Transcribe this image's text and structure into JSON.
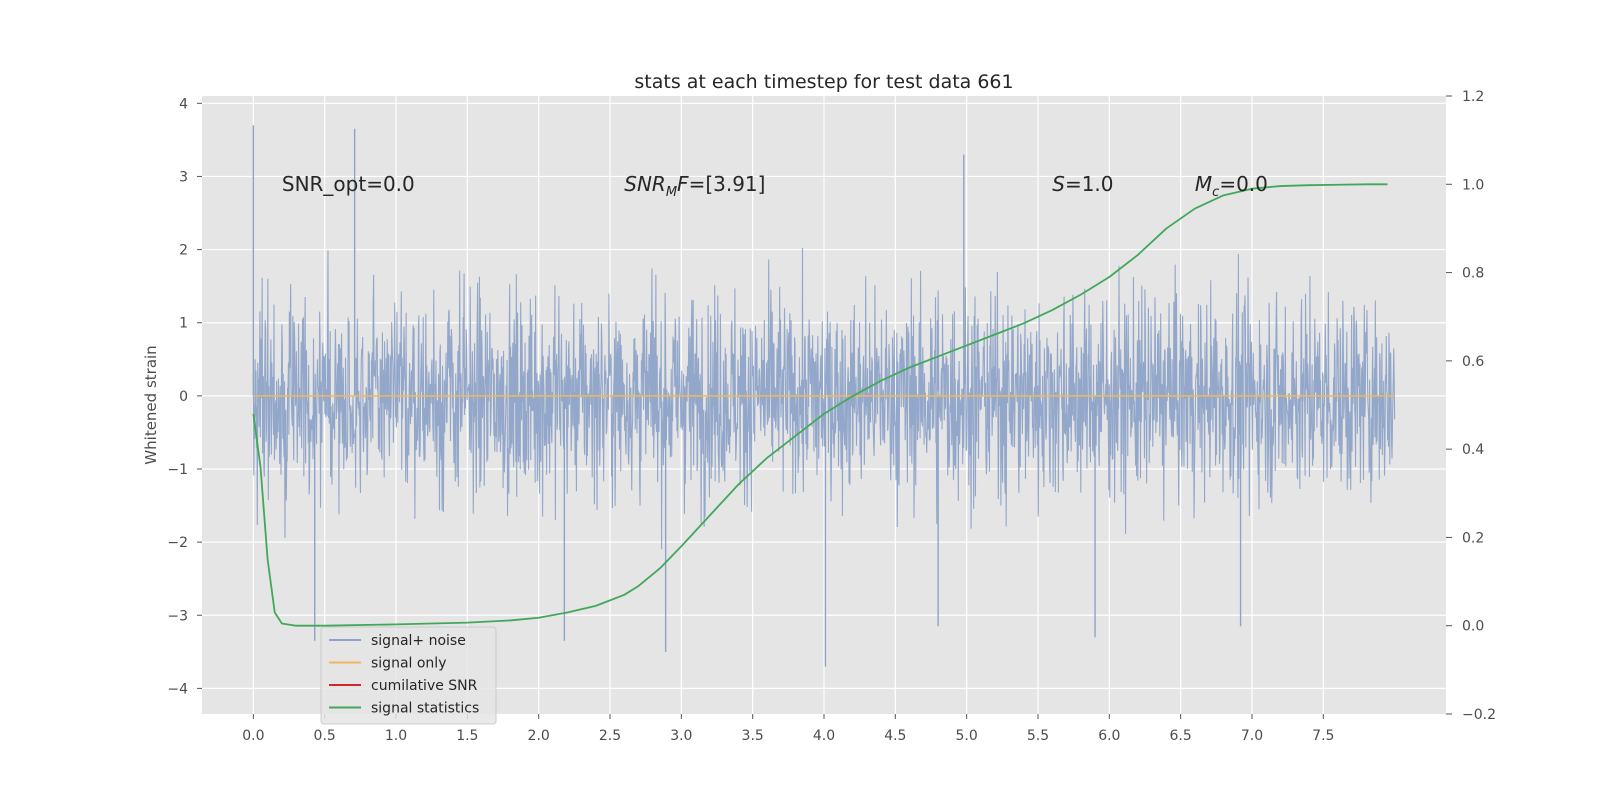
{
  "chart_data": {
    "type": "line",
    "title": "stats at each timestep for test data 661",
    "ylabel": "Whitened strain",
    "xlim": [
      -0.36,
      8.36
    ],
    "ylim": [
      -4.35,
      4.1
    ],
    "y2lim": [
      -0.2,
      1.2
    ],
    "x_ticks": [
      0.0,
      0.5,
      1.0,
      1.5,
      2.0,
      2.5,
      3.0,
      3.5,
      4.0,
      4.5,
      5.0,
      5.5,
      6.0,
      6.5,
      7.0,
      7.5
    ],
    "x_tick_labels": [
      "0.0",
      "0.5",
      "1.0",
      "1.5",
      "2.0",
      "2.5",
      "3.0",
      "3.5",
      "4.0",
      "4.5",
      "5.0",
      "5.5",
      "6.0",
      "6.5",
      "7.0",
      "7.5"
    ],
    "y_ticks": [
      -4,
      -3,
      -2,
      -1,
      0,
      1,
      2,
      3,
      4
    ],
    "y_tick_labels": [
      "−4",
      "−3",
      "−2",
      "−1",
      "0",
      "1",
      "2",
      "3",
      "4"
    ],
    "y2_ticks": [
      -0.2,
      0.0,
      0.2,
      0.4,
      0.6,
      0.8,
      1.0,
      1.2
    ],
    "y2_tick_labels": [
      "−0.2",
      "0.0",
      "0.2",
      "0.4",
      "0.6",
      "0.8",
      "1.0",
      "1.2"
    ],
    "grid": true,
    "legend_placement": "lower-left",
    "annotations": [
      {
        "text": "SNR_opt=0.0",
        "x": 0.2,
        "y": 2.9
      },
      {
        "text": "SNR_MF=[3.91]",
        "main": "SNR",
        "sub": "M",
        "tail": "F=[3.91]",
        "italic": true,
        "x": 2.6,
        "y": 2.9
      },
      {
        "text": "S=1.0",
        "main": "S",
        "tail": "=1.0",
        "italic": true,
        "x": 5.6,
        "y": 2.9
      },
      {
        "text": "M_c=0.0",
        "main": "M",
        "sub": "c",
        "tail": "=0.0",
        "italic": true,
        "x": 6.6,
        "y": 2.9
      }
    ],
    "series": [
      {
        "name": "signal+ noise",
        "color": "#8ea3c8",
        "axis": "left",
        "x_range": [
          0.0,
          8.0
        ],
        "extremes": [
          {
            "x": 0.0,
            "y": 3.7
          },
          {
            "x": 0.71,
            "y": 3.65
          },
          {
            "x": 4.98,
            "y": 3.3
          },
          {
            "x": 4.01,
            "y": -3.7
          },
          {
            "x": 2.89,
            "y": -3.5
          },
          {
            "x": 0.43,
            "y": -3.35
          },
          {
            "x": 5.9,
            "y": -3.3
          },
          {
            "x": 2.18,
            "y": -3.35
          },
          {
            "x": 6.92,
            "y": -3.15
          },
          {
            "x": 4.8,
            "y": -3.15
          }
        ]
      },
      {
        "name": "signal only",
        "color": "#f0b858",
        "axis": "left",
        "x": [
          0.0,
          8.0
        ],
        "y": [
          0.0,
          0.0
        ]
      },
      {
        "name": "cumilative SNR",
        "color": "#d62728",
        "axis": "left",
        "x": [],
        "y": []
      },
      {
        "name": "signal statistics",
        "color": "#41a85a",
        "axis": "right",
        "x": [
          0.0,
          0.05,
          0.1,
          0.15,
          0.2,
          0.3,
          0.5,
          1.0,
          1.5,
          1.8,
          2.0,
          2.2,
          2.4,
          2.6,
          2.7,
          2.85,
          3.0,
          3.2,
          3.4,
          3.6,
          3.8,
          4.0,
          4.2,
          4.4,
          4.6,
          4.8,
          5.0,
          5.2,
          5.4,
          5.6,
          5.8,
          6.0,
          6.2,
          6.4,
          6.6,
          6.8,
          7.0,
          7.2,
          7.4,
          7.6,
          7.8,
          7.95
        ],
        "y": [
          0.48,
          0.36,
          0.15,
          0.03,
          0.005,
          0.0,
          0.0,
          0.003,
          0.007,
          0.012,
          0.018,
          0.03,
          0.045,
          0.07,
          0.09,
          0.13,
          0.18,
          0.25,
          0.32,
          0.38,
          0.43,
          0.48,
          0.52,
          0.555,
          0.585,
          0.61,
          0.635,
          0.66,
          0.685,
          0.715,
          0.75,
          0.79,
          0.84,
          0.9,
          0.945,
          0.975,
          0.99,
          0.996,
          0.998,
          0.999,
          1.0,
          1.0
        ]
      }
    ]
  }
}
